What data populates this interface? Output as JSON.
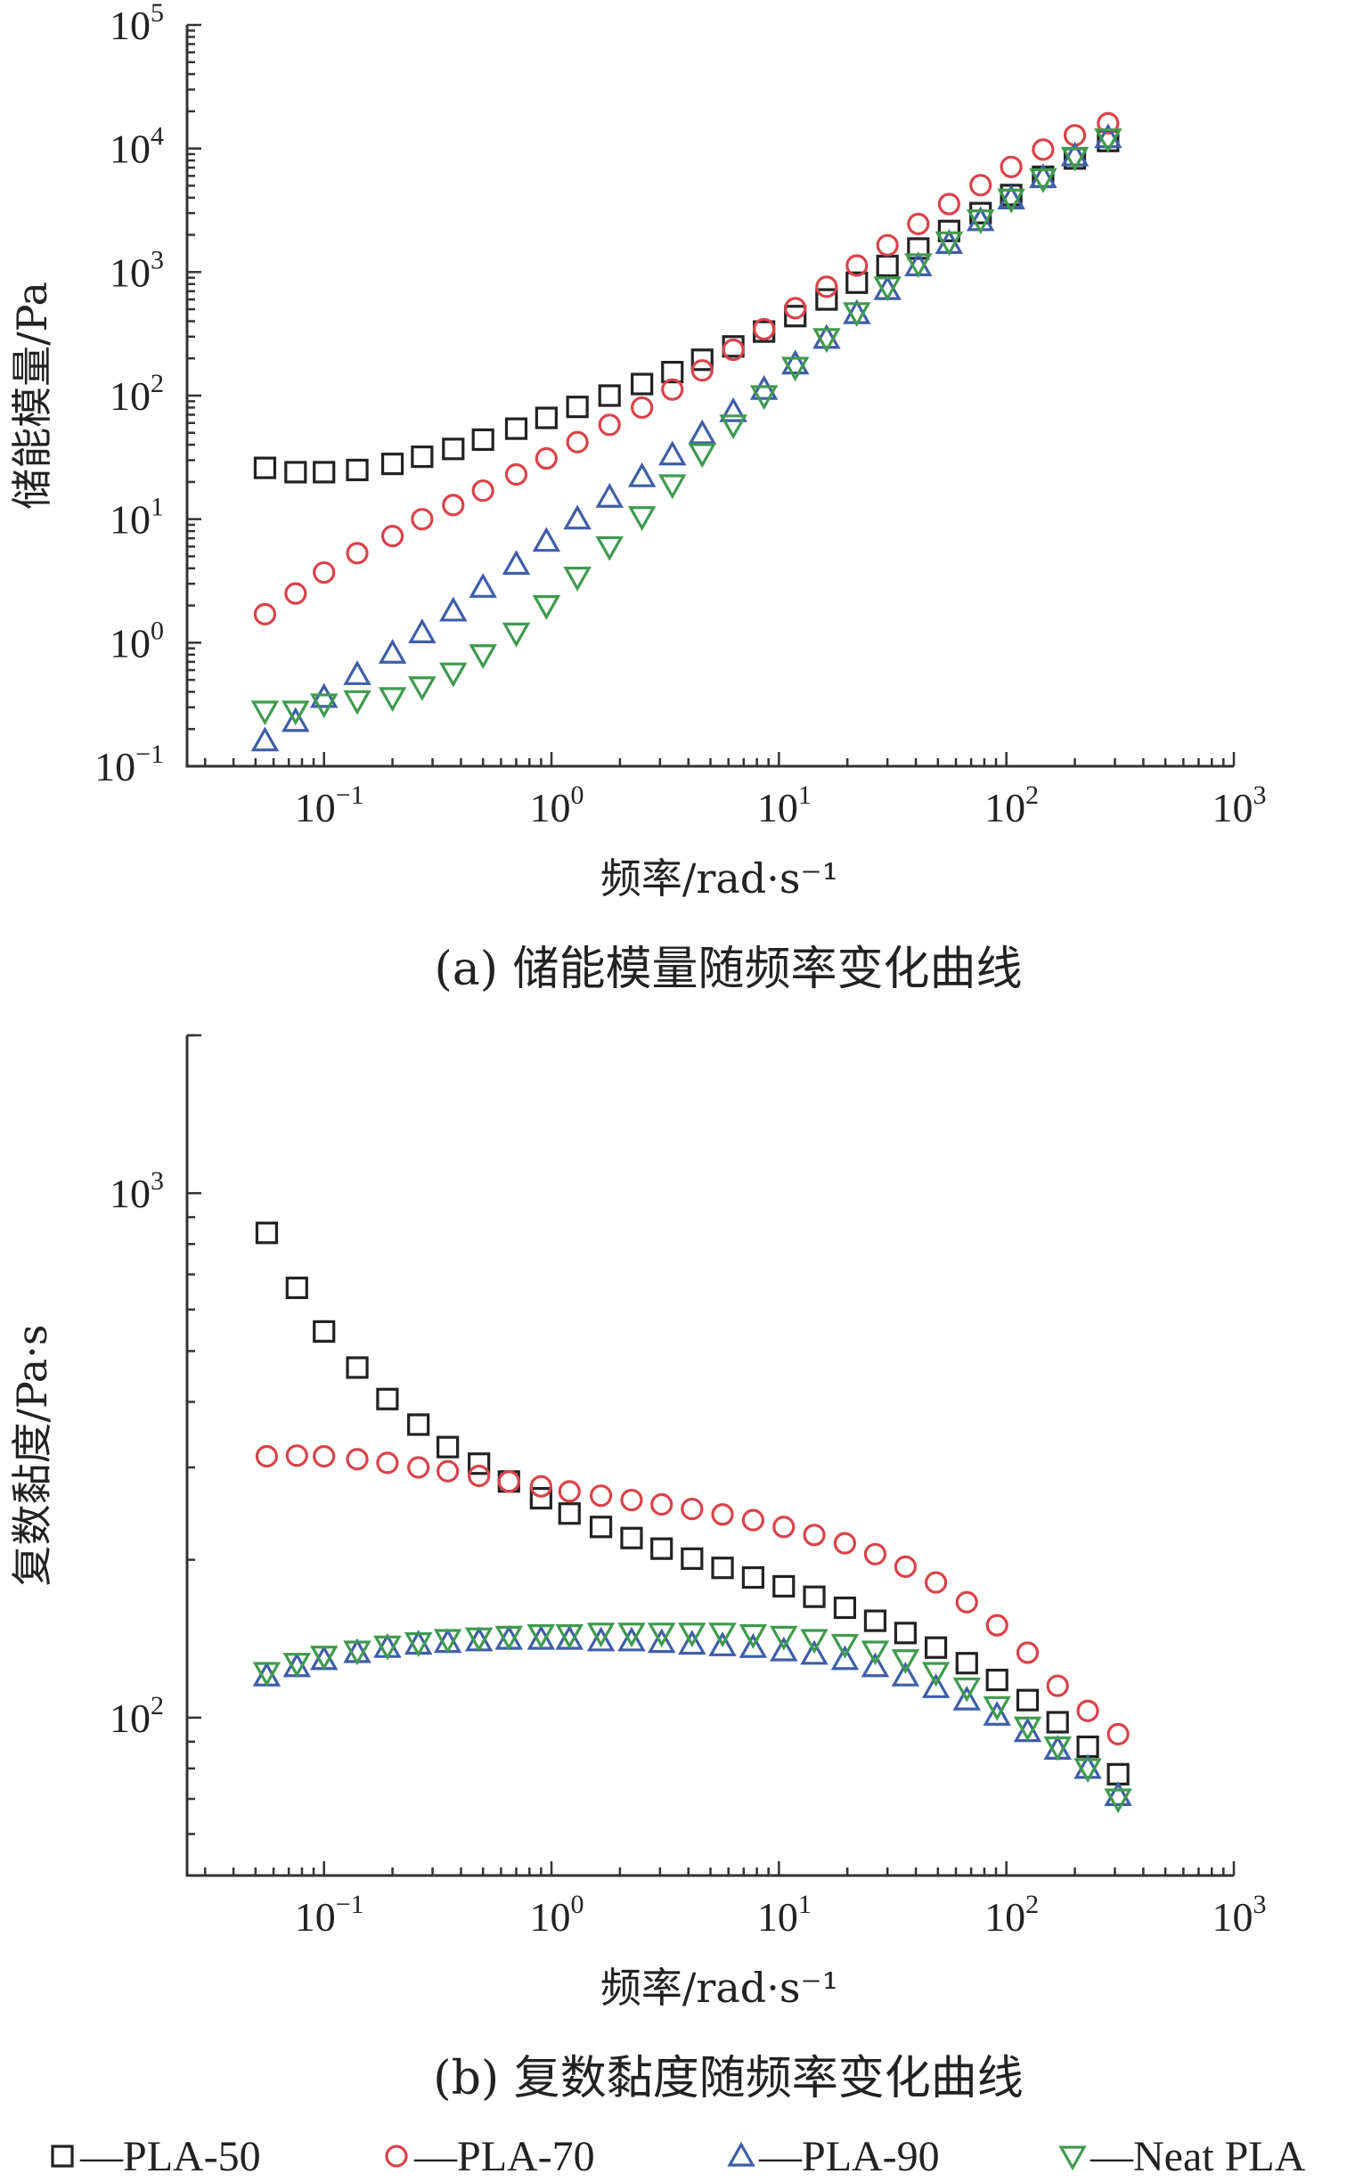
{
  "chart_data": [
    {
      "type": "scatter",
      "caption": "(a) 储能模量随频率变化曲线",
      "xlabel": "频率/rad·s⁻¹",
      "ylabel": "储能模量/Pa",
      "x_scale": "log",
      "y_scale": "log",
      "xlim": [
        0.025,
        1000
      ],
      "ylim": [
        0.1,
        100000
      ],
      "x_ticks": [
        0.1,
        1,
        10,
        100,
        1000
      ],
      "x_tick_labels": [
        {
          "base": "10",
          "exp": "−1"
        },
        {
          "base": "10",
          "exp": "0"
        },
        {
          "base": "10",
          "exp": "1"
        },
        {
          "base": "10",
          "exp": "2"
        },
        {
          "base": "10",
          "exp": "3"
        }
      ],
      "y_ticks": [
        0.1,
        1,
        10,
        100,
        1000,
        10000,
        100000
      ],
      "y_tick_labels": [
        {
          "base": "10",
          "exp": "−1"
        },
        {
          "base": "10",
          "exp": "0"
        },
        {
          "base": "10",
          "exp": "1"
        },
        {
          "base": "10",
          "exp": "2"
        },
        {
          "base": "10",
          "exp": "3"
        },
        {
          "base": "10",
          "exp": "4"
        },
        {
          "base": "10",
          "exp": "5"
        }
      ],
      "grid": false,
      "x": [
        0.055,
        0.075,
        0.1,
        0.14,
        0.2,
        0.27,
        0.37,
        0.5,
        0.7,
        0.95,
        1.3,
        1.8,
        2.5,
        3.4,
        4.6,
        6.3,
        8.6,
        11.8,
        16.2,
        22,
        30,
        41,
        56,
        77,
        105,
        145,
        200,
        280
      ],
      "series": [
        {
          "name": "PLA-50",
          "marker": "square",
          "color": "#222222",
          "values": [
            26,
            24,
            24,
            25,
            28,
            32,
            37,
            44,
            54,
            66,
            81,
            100,
            124,
            155,
            195,
            250,
            330,
            440,
            600,
            820,
            1120,
            1550,
            2150,
            3000,
            4200,
            5900,
            8300,
            11500
          ]
        },
        {
          "name": "PLA-70",
          "marker": "circle",
          "color": "#d9434a",
          "values": [
            1.7,
            2.5,
            3.7,
            5.3,
            7.3,
            10,
            13,
            17,
            23,
            31,
            42,
            58,
            80,
            112,
            160,
            235,
            345,
            510,
            760,
            1130,
            1650,
            2450,
            3550,
            5050,
            7100,
            9800,
            12800,
            16000
          ]
        },
        {
          "name": "PLA-90",
          "marker": "triangle-up",
          "color": "#3f5ea8",
          "values": [
            0.16,
            0.23,
            0.36,
            0.55,
            0.82,
            1.2,
            1.8,
            2.8,
            4.3,
            6.6,
            10,
            15,
            22,
            33,
            49,
            74,
            112,
            180,
            290,
            460,
            720,
            1120,
            1700,
            2600,
            3900,
            5800,
            8700,
            12200
          ]
        },
        {
          "name": "Neat PLA",
          "marker": "triangle-down",
          "color": "#3f9a4e",
          "values": [
            0.28,
            0.28,
            0.32,
            0.34,
            0.36,
            0.44,
            0.57,
            0.8,
            1.2,
            2,
            3.4,
            6,
            10.5,
            19,
            34,
            58,
            100,
            170,
            290,
            470,
            760,
            1170,
            1760,
            2650,
            3900,
            5700,
            8500,
            12000
          ]
        }
      ]
    },
    {
      "type": "scatter",
      "caption": "(b) 复数黏度随频率变化曲线",
      "xlabel": "频率/rad·s⁻¹",
      "ylabel": "复数黏度/Pa·s",
      "x_scale": "log",
      "y_scale": "log",
      "xlim": [
        0.025,
        1000
      ],
      "ylim": [
        50,
        2000
      ],
      "x_ticks": [
        0.1,
        1,
        10,
        100,
        1000
      ],
      "x_tick_labels": [
        {
          "base": "10",
          "exp": "−1"
        },
        {
          "base": "10",
          "exp": "0"
        },
        {
          "base": "10",
          "exp": "1"
        },
        {
          "base": "10",
          "exp": "2"
        },
        {
          "base": "10",
          "exp": "3"
        }
      ],
      "y_ticks": [
        100,
        1000
      ],
      "y_tick_labels": [
        {
          "base": "10",
          "exp": "2"
        },
        {
          "base": "10",
          "exp": "3"
        }
      ],
      "grid": false,
      "x": [
        0.056,
        0.076,
        0.1,
        0.14,
        0.19,
        0.26,
        0.35,
        0.48,
        0.65,
        0.9,
        1.2,
        1.65,
        2.25,
        3.05,
        4.15,
        5.65,
        7.7,
        10.5,
        14.3,
        19.5,
        26.5,
        36,
        49,
        67,
        91,
        124,
        168,
        228,
        310
      ],
      "series": [
        {
          "name": "PLA-50",
          "marker": "square",
          "color": "#222222",
          "values": [
            840,
            660,
            545,
            465,
            405,
            362,
            328,
            305,
            282,
            262,
            245,
            231,
            220,
            210,
            201,
            193,
            185,
            178,
            170,
            162,
            153,
            145,
            136,
            127,
            118,
            108,
            98,
            88,
            78
          ]
        },
        {
          "name": "PLA-70",
          "marker": "circle",
          "color": "#d9434a",
          "values": [
            315,
            316,
            315,
            311,
            306,
            300,
            295,
            289,
            282,
            276,
            270,
            265,
            260,
            255,
            250,
            244,
            238,
            231,
            223,
            215,
            205,
            194,
            181,
            166,
            150,
            133,
            115,
            103,
            93
          ]
        },
        {
          "name": "PLA-90",
          "marker": "triangle-up",
          "color": "#3f5ea8",
          "values": [
            120,
            125,
            129,
            133,
            136,
            138,
            139,
            140,
            141,
            141,
            141,
            140,
            140,
            139,
            138,
            137,
            136,
            134,
            132,
            129,
            125,
            120,
            114,
            108,
            101,
            94,
            87,
            80,
            71
          ]
        },
        {
          "name": "Neat PLA",
          "marker": "triangle-down",
          "color": "#3f9a4e",
          "values": [
            122,
            127,
            131,
            134,
            137,
            139,
            141,
            142,
            143,
            144,
            144,
            145,
            145,
            145,
            145,
            145,
            144,
            143,
            141,
            138,
            134,
            129,
            122,
            114,
            105,
            96,
            88,
            80,
            70
          ]
        }
      ]
    }
  ],
  "legend": {
    "placement": "bottom",
    "items": [
      {
        "label": "—PLA-50",
        "marker": "square",
        "color": "#222222"
      },
      {
        "label": "—PLA-70",
        "marker": "circle",
        "color": "#d9434a"
      },
      {
        "label": "—PLA-90",
        "marker": "triangle-up",
        "color": "#3f5ea8"
      },
      {
        "label": "—Neat PLA",
        "marker": "triangle-down",
        "color": "#3f9a4e"
      }
    ]
  }
}
